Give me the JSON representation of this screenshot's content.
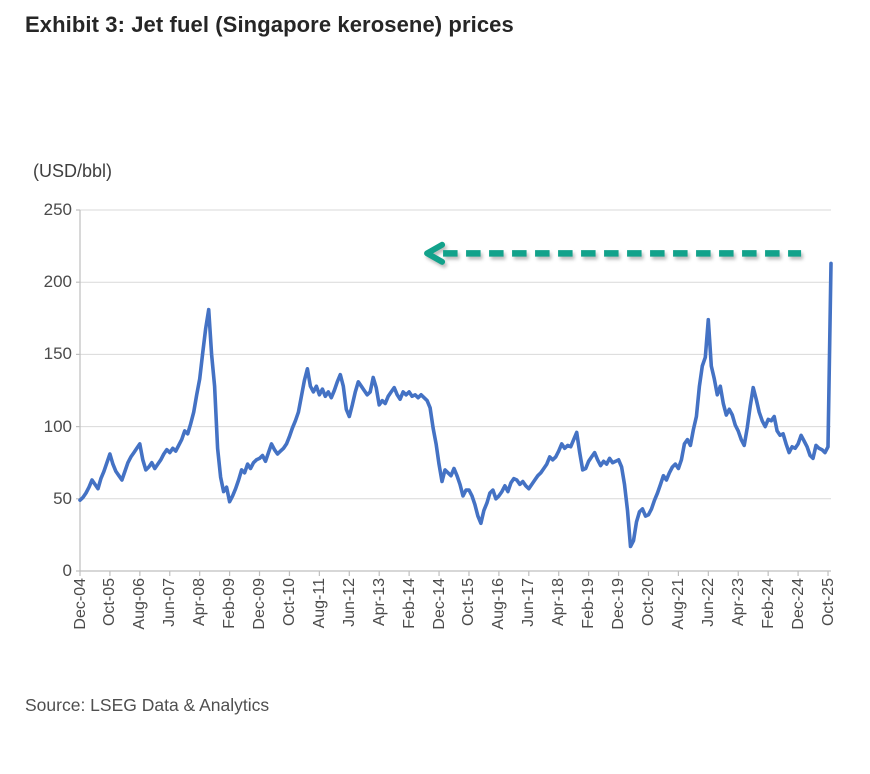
{
  "page": {
    "title": "Exhibit 3: Jet fuel (Singapore kerosene) prices",
    "source": "Source: LSEG Data & Analytics"
  },
  "colors": {
    "line": "#4472c4",
    "arrow": "#12a28b",
    "grid": "#d9d9d9",
    "axis": "#bfbfbf",
    "tick_text": "#4b4b4b"
  },
  "chart_data": {
    "type": "line",
    "title": "Exhibit 3: Jet fuel (Singapore kerosene) prices",
    "unit_label": "(USD/bbl)",
    "ylabel": "(USD/bbl)",
    "ylim": [
      0,
      250
    ],
    "y_ticks": [
      0,
      50,
      100,
      150,
      200,
      250
    ],
    "grid": "horizontal",
    "legend": "none",
    "x_tick_step_months": 10,
    "x_tick_labels": [
      "Dec-04",
      "Oct-05",
      "Aug-06",
      "Jun-07",
      "Apr-08",
      "Feb-09",
      "Dec-09",
      "Oct-10",
      "Aug-11",
      "Jun-12",
      "Apr-13",
      "Feb-14",
      "Dec-14",
      "Oct-15",
      "Aug-16",
      "Jun-17",
      "Apr-18",
      "Feb-19",
      "Dec-19",
      "Oct-20",
      "Aug-21",
      "Jun-22",
      "Apr-23",
      "Feb-24",
      "Dec-24",
      "Oct-25"
    ],
    "series": [
      {
        "name": "Jet fuel (Singapore kerosene) price",
        "frequency": "monthly",
        "start_month": "Dec-04",
        "end_month": "Nov-25",
        "values": [
          49,
          51,
          54,
          58,
          63,
          60,
          57,
          64,
          69,
          75,
          81,
          74,
          69,
          66,
          63,
          69,
          75,
          79,
          82,
          85,
          88,
          77,
          70,
          72,
          75,
          71,
          74,
          77,
          81,
          84,
          82,
          85,
          83,
          87,
          91,
          97,
          95,
          102,
          110,
          122,
          133,
          151,
          168,
          181,
          150,
          128,
          85,
          65,
          55,
          58,
          48,
          52,
          57,
          63,
          70,
          68,
          74,
          71,
          75,
          77,
          78,
          80,
          76,
          82,
          88,
          84,
          81,
          83,
          85,
          88,
          93,
          99,
          104,
          110,
          121,
          132,
          140,
          128,
          124,
          128,
          122,
          126,
          121,
          124,
          120,
          125,
          131,
          136,
          128,
          112,
          107,
          115,
          124,
          131,
          128,
          125,
          122,
          124,
          134,
          127,
          115,
          118,
          116,
          121,
          124,
          127,
          122,
          119,
          124,
          122,
          124,
          121,
          122,
          120,
          122,
          120,
          118,
          113,
          99,
          88,
          74,
          62,
          70,
          68,
          66,
          71,
          66,
          60,
          52,
          56,
          56,
          52,
          46,
          38,
          33,
          42,
          47,
          54,
          56,
          50,
          52,
          55,
          59,
          55,
          61,
          64,
          63,
          60,
          62,
          59,
          57,
          60,
          63,
          66,
          68,
          71,
          74,
          79,
          77,
          79,
          83,
          88,
          85,
          87,
          86,
          91,
          96,
          82,
          70,
          71,
          76,
          79,
          82,
          77,
          73,
          76,
          74,
          78,
          75,
          76,
          77,
          72,
          60,
          42,
          17,
          21,
          34,
          41,
          43,
          38,
          39,
          43,
          49,
          54,
          60,
          66,
          63,
          68,
          72,
          74,
          71,
          77,
          88,
          91,
          87,
          98,
          107,
          128,
          142,
          148,
          174,
          142,
          133,
          122,
          128,
          116,
          108,
          112,
          108,
          101,
          97,
          91,
          87,
          99,
          114,
          127,
          119,
          110,
          104,
          100,
          105,
          104,
          107,
          97,
          94,
          95,
          88,
          82,
          86,
          85,
          88,
          94,
          90,
          86,
          80,
          78,
          87,
          85,
          84,
          82,
          86,
          213
        ]
      }
    ],
    "annotation": {
      "type": "dashed-arrow-left",
      "y_value": 220,
      "tip_month_index": 116,
      "tail_month_index": 241
    }
  }
}
